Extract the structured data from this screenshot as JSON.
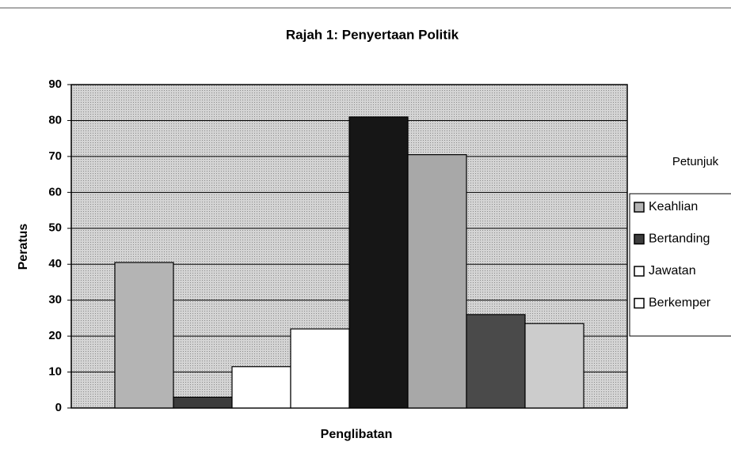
{
  "chart_data": {
    "type": "bar",
    "title": "Rajah 1: Penyertaan Politik",
    "x_label": "Penglibatan",
    "y_label": "Peratus",
    "legend_title": "Petunjuk",
    "series": [
      {
        "name": "Keahlian",
        "color": "#b4b4b4",
        "values": [
          40.5
        ]
      },
      {
        "name": "Bertanding",
        "color": "#3c3c3c",
        "values": [
          3
        ]
      },
      {
        "name": "Jawatan",
        "color": "#ffffff",
        "values": [
          11.5
        ]
      },
      {
        "name": "Berkemper",
        "color": "#ffffff",
        "values": [
          22
        ]
      },
      {
        "color": "#161616",
        "values": [
          81
        ]
      },
      {
        "color": "#a8a8a8",
        "values": [
          70.5
        ]
      },
      {
        "color": "#4a4a4a",
        "values": [
          26
        ]
      },
      {
        "color": "#cccccc",
        "values": [
          23.5
        ]
      }
    ],
    "ylim": [
      0,
      90
    ],
    "yticks": [
      0,
      10,
      20,
      30,
      40,
      50,
      60,
      70,
      80,
      90
    ],
    "grid": true
  }
}
